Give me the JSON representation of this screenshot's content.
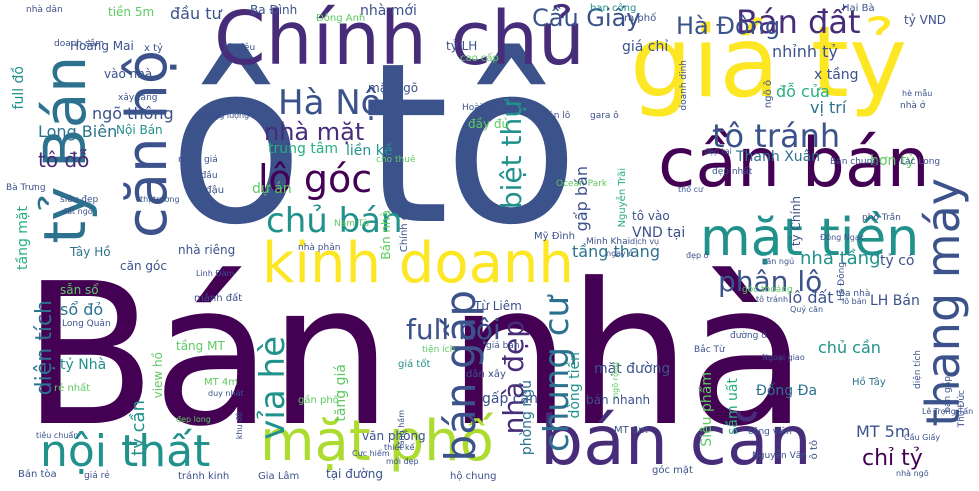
{
  "words": {
    "ban_nha": "Bán nhà",
    "o_to": "ô tô",
    "chinh_chu": "Chính chủ",
    "gia_ty": "giá tỷ",
    "can_ban": "cần bán",
    "ban_can": "bán căn",
    "kinh_doanh": "kinh doanh",
    "noi_that": "nội thất",
    "mat_pho": "mặt phố",
    "mat_tien": "mặt tiền",
    "ty_ban": "tỷ Bán",
    "can_ho": "căn hộ",
    "ha_noi": "Hà Nội",
    "lo_goc": "lô góc",
    "ban_dat": "Bán đất",
    "ha_dong": "Hà Đông",
    "cau_giay": "Cầu Giấy",
    "to_tranh": "tô tránh",
    "thang_may": "thang máy",
    "chu_ban": "chủ bán",
    "ban_gap": "bán gấp",
    "nha_mat": "nhà mặt",
    "via_he": "vỉa hè",
    "chung_cu": "chung cư",
    "phan_lo": "phân lô",
    "full_noi": "full nội",
    "dien_tich": "diện tích",
    "nha_dep": "nhà đẹp",
    "biet_thu": "biệt thự",
    "chi_ty": "chỉ tỷ",
    "ty_can": "tỷ cần",
    "nha_tang": "nhà tầng",
    "to_do": "tô đỗ",
    "ngo_thong": "ngõ thông",
    "long_bien": "Long Biên",
    "thanh_xuan": "Thanh Xuân",
    "ba_dinh": "Ba Đình",
    "dau_tu": "đầu tư",
    "tien_5m": "tiền 5m",
    "nha_moi": "nhà mới",
    "nhinh_ty": "nhỉnh tỷ",
    "gia_chi": "giá chỉ",
    "ty_vnd": "tỷ VND",
    "x_tang": "x tầng",
    "do_cua": "đỗ cửa",
    "vi_tri": "vị trí",
    "hon_ty": "hơn tỷ",
    "ty_lh": "tỷ LH",
    "vao_nha": "vào nhà",
    "mat_ngo": "mặt ngõ",
    "noi_ban": "Nội Bán",
    "lien_ke": "liền kề",
    "trung_tam": "trung tâm",
    "du_an": "dự án",
    "tang_thang": "tầng thang",
    "tay_ho": "Tây Hồ",
    "nha_rieng": "nhà riêng",
    "can_goc": "căn góc",
    "lo_dat": "lô đất",
    "lh_ban": "LH Bán",
    "so_do": "sổ đỏ",
    "san_so": "sẵn sổ",
    "manh_dat": "mảnh đất",
    "tu_liem": "Từ Liêm",
    "tang_mt": "tầng MT",
    "chu_can": "chủ cần",
    "gan_pho": "gần phố",
    "mat_duong": "mặt đường",
    "ban_nhanh": "bán nhanh",
    "dong_tien": "dòng tiền",
    "ty_nha": "tỷ Nhà",
    "re_nhat": "rẻ nhất",
    "view_ho": "view hồ",
    "gap_can": "gấp cần",
    "phong_ngu": "phòng ngủ",
    "dong_da": "Đống Đa",
    "ho_tay": "Hồ Tây",
    "mt_5m": "MT 5m",
    "sieu_pham": "Siêu phẩm",
    "van_phong": "văn phòng",
    "gia_lam": "Gia Lâm",
    "tranh_kinh": "tránh kinh",
    "ho_chung": "hộ chung",
    "goc_mat": "góc mặt",
    "ban_toa": "Bán tòa",
    "tai_duong": "tại đường",
    "my_dinh": "Mỹ Đình",
    "vnd_tai": "VND tại",
    "to_vao": "tô vào",
    "ty_co": "tỷ có",
    "hoang_mai": "Hoàng Mai",
    "full_do": "full đồ",
    "ba_trung": "Bà Trưng",
    "tang_mat": "tầng mặt",
    "ban_cong": "ban công",
    "ra_pho": "ra phố",
    "hai_ba": "Hai Bà",
    "dong_anh": "Đông Anh",
    "nam_tu": "Nam Từ",
    "ocean_park": "Ocean Park",
    "gia_tot": "giá tốt",
    "dan_xay": "dân xây",
    "tien_ich": "tiện ích",
    "mt_6m": "MT 6m",
    "mt_4m": "MT 4m",
    "bac_tu": "Bắc Từ",
    "lac_long": "Lạc Long",
    "nguyen_van": "Nguyễn Văn",
    "cong_vien": "công viên",
    "minh_khai": "Minh Khai",
    "thanh_tri": "Thanh Trì",
    "cho_thue": "cho thuê",
    "ban_chung": "Bán chung",
    "cao_cap": "cao cấp",
    "doanh_dinh": "doanh dinh",
    "ngo_o": "ngõ ô",
    "sam_uat": "sầm uất",
    "tang_gia": "tăng giá",
    "dep_nhat": "đẹp nhất",
    "toa_nha": "tòa nhà",
    "tranh_dau": "tránh đậu",
    "duy_nhat": "duy nhất",
    "cuc_hiem": "Cực hiếm",
    "ho_kinh": "hè kinh",
    "thiet_ke": "thiết kế",
    "moi_dep": "mới đẹp",
    "x_ty": "x tỷ",
    "ty_sieu": "tỷ Siêu",
    "ty_ban_small": "tỷ Bán",
    "ban_nha_small": "Bán nhà",
    "nha_dan": "nhà dân",
    "khu_do": "khu đô",
    "tieu_chuan": "tiêu chuẩn",
    "dep_long": "đẹp long",
    "dau_du": "đầy đủ",
    "to_5m": "tô 5m",
    "gia_dau": "giá đầu",
    "xay_tang": "xây tầng",
    "o_to_small": "ô tô",
    "gan_o": "gần ô",
    "ngo_rong": "ngõ rộng",
    "long_quan": "Long Quân",
    "o_dau": "ô đậu",
    "goc_thoang": "góc thoáng",
    "gia_re": "giá rẻ",
    "chinh_chu_small": "Chính chủ",
    "ngay_o": "ngay ô",
    "rieng_gia": "riêng giá",
    "tang_ham": "tầng hầm",
    "thu_duc": "Thủ Đức",
    "ha_dong_small": "Hà Đông",
    "linh_dam": "Linh Đàm",
    "nha_phan": "nhà phân",
    "sieu_dep": "siêu đẹp",
    "dat_ngo": "đất ngõ",
    "thuong_luong": "thương lượng",
    "ban_toa_small": "bán tòa",
    "hoai_duc": "Hoài Đức",
    "gara_o": "gara ô",
    "doanh_sam": "doanh sầm",
    "duong_o": "đường ô",
    "le_trong_tan": "Lê Trọng Tấn",
    "ban_lo": "Bán lô",
    "tho_cu": "thổ cư",
    "dich_vu": "dịch vụ",
    "thi_truong": "thị trường",
    "nguyen_trai": "Nguyễn Trãi",
    "dep_o": "đẹp ô",
    "gap_ban": "gấp bán",
    "nha_o": "nhà ở",
    "to_tranh_small": "tô tránh",
    "ho_mau": "hè mẫu",
    "pho_tran": "phố Trần",
    "can_ngu": "căn ngủ",
    "quy_can": "Quý căn",
    "dong_ngac": "Đông Ngạc",
    "ngoai_giao": "Ngoại giao",
    "dien_tich_small": "diện tích",
    "ban_gap_small": "bán gấp",
    "ty_chinh": "tỷ Chính",
    "gia_ban": "giá bán",
    "cau_giay_small": "Cầu Giấy",
    "loai_ban": "lô bán",
    "dep_tai": "đẹp tại",
    "nha_ngo": "nhà ngõ"
  }
}
